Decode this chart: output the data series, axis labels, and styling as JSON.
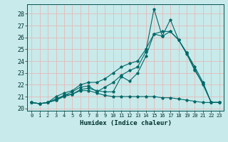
{
  "title": "",
  "xlabel": "Humidex (Indice chaleur)",
  "xlim": [
    -0.5,
    23.5
  ],
  "ylim": [
    19.8,
    28.8
  ],
  "yticks": [
    20,
    21,
    22,
    23,
    24,
    25,
    26,
    27,
    28
  ],
  "xticks": [
    0,
    1,
    2,
    3,
    4,
    5,
    6,
    7,
    8,
    9,
    10,
    11,
    12,
    13,
    14,
    15,
    16,
    17,
    18,
    19,
    20,
    21,
    22,
    23
  ],
  "bg_color": "#c8eaea",
  "grid_color": "#e8b8b8",
  "line_color": "#006868",
  "lines": [
    [
      20.5,
      20.4,
      20.5,
      20.8,
      21.1,
      21.4,
      21.8,
      21.9,
      21.4,
      21.8,
      22.2,
      22.8,
      23.2,
      23.5,
      24.8,
      28.4,
      26.1,
      27.5,
      25.8,
      24.7,
      23.3,
      22.0,
      20.5,
      20.5
    ],
    [
      20.5,
      20.4,
      20.5,
      21.0,
      21.3,
      21.5,
      22.0,
      22.2,
      22.2,
      22.5,
      23.0,
      23.5,
      23.8,
      24.0,
      25.0,
      26.3,
      26.5,
      26.5,
      25.8,
      24.7,
      23.5,
      22.2,
      20.5,
      20.5
    ],
    [
      20.5,
      20.4,
      20.5,
      20.7,
      21.1,
      21.2,
      21.6,
      21.7,
      21.5,
      21.4,
      21.4,
      22.7,
      22.3,
      23.0,
      24.4,
      26.3,
      26.1,
      26.5,
      25.8,
      24.6,
      23.2,
      22.1,
      20.5,
      20.5
    ],
    [
      20.5,
      20.4,
      20.5,
      20.7,
      21.0,
      21.2,
      21.5,
      21.5,
      21.3,
      21.1,
      21.0,
      21.0,
      21.0,
      21.0,
      21.0,
      21.0,
      20.9,
      20.9,
      20.8,
      20.7,
      20.6,
      20.5,
      20.5,
      20.5
    ]
  ]
}
